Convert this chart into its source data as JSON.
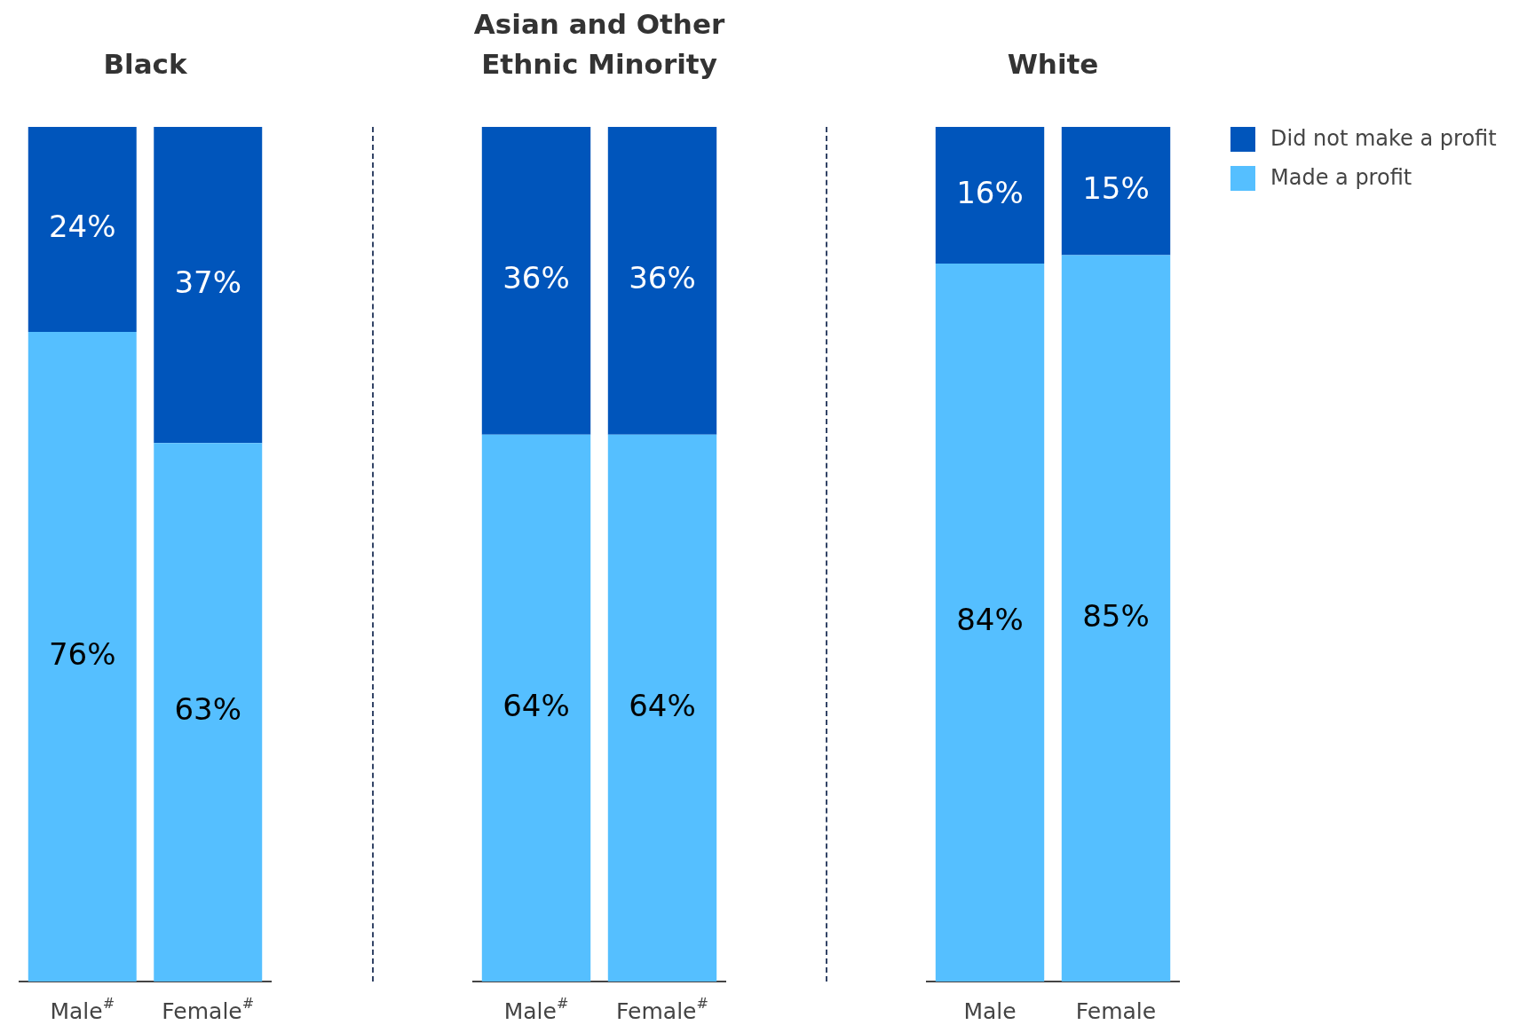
{
  "chart_data": [
    {
      "type": "bar",
      "title": "Black",
      "categories": [
        "Male$^{#}$",
        "Female$^{#}$"
      ],
      "stacked": true,
      "tick_labels": "x",
      "grid": false,
      "legend": false,
      "series": [
        {
          "color": "#55bfff",
          "values": [
            76,
            63
          ],
          "value_labels": [
            "76%",
            "63%"
          ]
        },
        {
          "color": "#0055bb",
          "values": [
            24,
            37
          ],
          "value_labels": [
            "24%",
            "37%"
          ]
        }
      ]
    },
    {
      "type": "bar",
      "title": "Asian and Other Ethnic Minority",
      "categories": [
        "Male$^{#}$",
        "Female$^{#}$"
      ],
      "stacked": true,
      "tick_labels": "x",
      "grid": false,
      "legend": false,
      "series": [
        {
          "color": "#55bfff",
          "values": [
            64,
            64
          ],
          "value_labels": [
            "64%",
            "64%"
          ]
        },
        {
          "color": "#0055bb",
          "values": [
            36,
            36
          ],
          "value_labels": [
            "36%",
            "36%"
          ]
        }
      ]
    },
    {
      "type": "bar",
      "title": "White",
      "categories": [
        "Male",
        "Female"
      ],
      "stacked": true,
      "tick_labels": "x",
      "grid": false,
      "legend": "right",
      "series": [
        {
          "name": "Made a profit",
          "color": "#55bfff",
          "values": [
            84,
            85
          ],
          "value_labels": [
            "84%",
            "85%"
          ]
        },
        {
          "name": "Did not make a profit",
          "color": "#0055bb",
          "values": [
            16,
            15
          ],
          "value_labels": [
            "16%",
            "15%"
          ]
        }
      ]
    }
  ]
}
